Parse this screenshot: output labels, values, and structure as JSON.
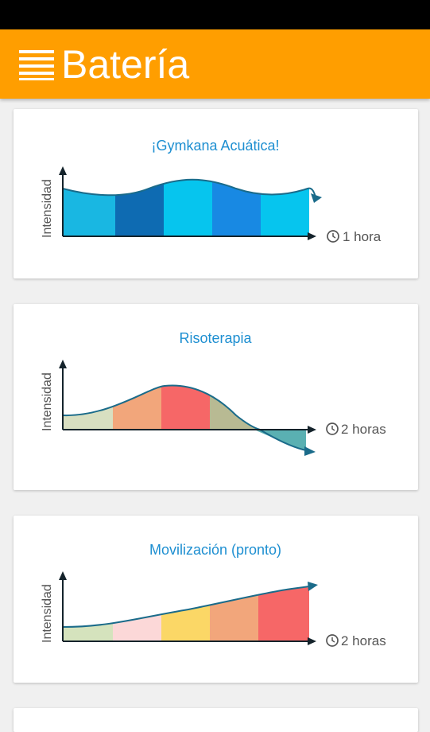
{
  "app": {
    "title": "Batería",
    "colors": {
      "appbar": "#ff9e00",
      "title_text": "#1e8fd1"
    }
  },
  "activities": [
    {
      "title": "¡Gymkana Acuática!",
      "y_label": "Intensidad",
      "duration": "1 hora",
      "icons": [
        "clock-icon"
      ],
      "segment_colors": [
        "#19b7e2",
        "#0e6bb2",
        "#06c5ee",
        "#1889e3",
        "#06c5ee"
      ]
    },
    {
      "title": "Risoterapia",
      "y_label": "Intensidad",
      "duration": "2 horas",
      "icons": [
        "clock-icon"
      ],
      "segment_colors": [
        "#d8dfc1",
        "#f2a67b",
        "#f66767",
        "#b8ba93",
        "#5ab0b2"
      ]
    },
    {
      "title": "Movilización (pronto)",
      "y_label": "Intensidad",
      "duration": "2 horas",
      "icons": [
        "clock-icon"
      ],
      "segment_colors": [
        "#d5e3bd",
        "#fcd8d8",
        "#fbd766",
        "#f2a67b",
        "#f66767"
      ]
    }
  ]
}
